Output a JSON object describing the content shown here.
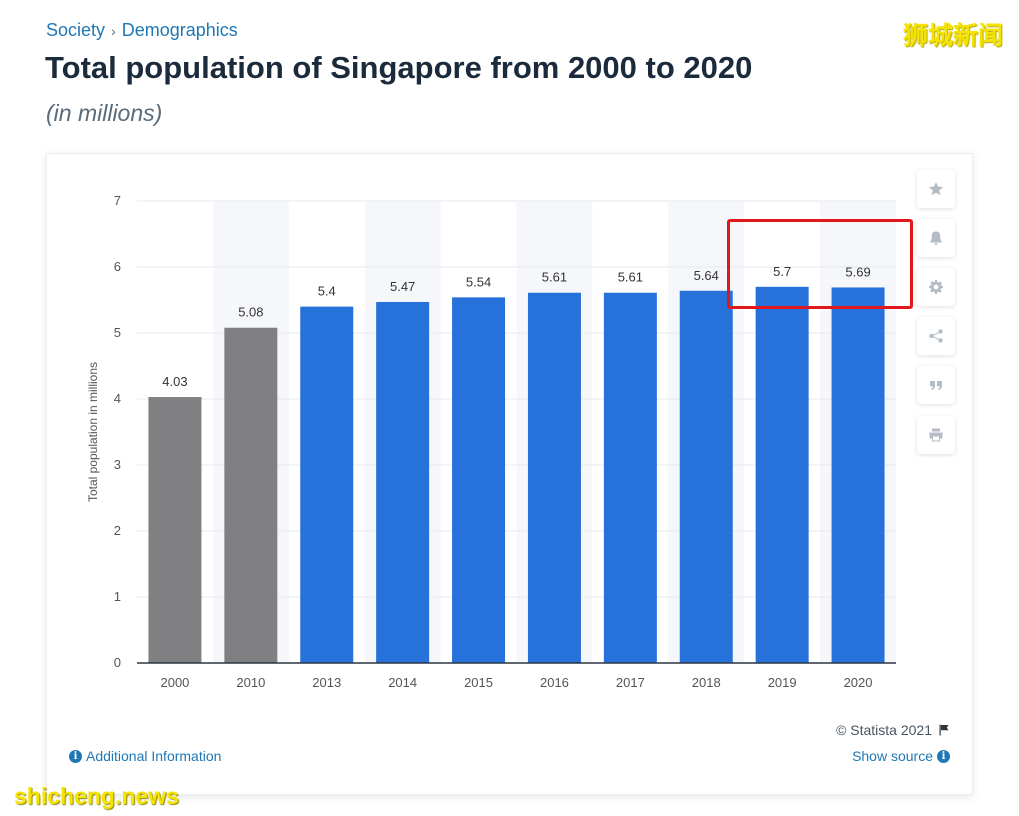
{
  "header": {
    "breadcrumb": [
      "Society",
      "Demographics"
    ],
    "breadcrumb_separator": "›",
    "title": "Total population of Singapore from 2000 to 2020",
    "subtitle": "(in millions)"
  },
  "watermarks": {
    "top": "狮城新闻",
    "bottom": "shicheng.news"
  },
  "sidebar": {
    "icons": [
      "star-icon",
      "bell-icon",
      "gear-icon",
      "share-icon",
      "quote-icon",
      "print-icon"
    ]
  },
  "footer": {
    "additional_info": "Additional Information",
    "copyright": "© Statista 2021",
    "show_source": "Show source"
  },
  "colors": {
    "bar_blue": "#2771db",
    "bar_gray": "#808083",
    "highlight": "#e3161c",
    "link": "#1f78b4"
  },
  "chart_data": {
    "type": "bar",
    "title": "Total population of Singapore from 2000 to 2020",
    "subtitle": "(in millions)",
    "ylabel": "Total population in millions",
    "xlabel": "",
    "categories": [
      "2000",
      "2010",
      "2013",
      "2014",
      "2015",
      "2016",
      "2017",
      "2018",
      "2019",
      "2020"
    ],
    "values": [
      4.03,
      5.08,
      5.4,
      5.47,
      5.54,
      5.61,
      5.61,
      5.64,
      5.7,
      5.69
    ],
    "value_labels": [
      "4.03",
      "5.08",
      "5.4",
      "5.47",
      "5.54",
      "5.61",
      "5.61",
      "5.64",
      "5.7",
      "5.69"
    ],
    "bar_colors": [
      "#808083",
      "#808083",
      "#2771db",
      "#2771db",
      "#2771db",
      "#2771db",
      "#2771db",
      "#2771db",
      "#2771db",
      "#2771db"
    ],
    "ylim": [
      0,
      7
    ],
    "yticks": [
      0,
      1,
      2,
      3,
      4,
      5,
      6,
      7
    ],
    "grid": true,
    "highlighted_categories": [
      "2019",
      "2020"
    ]
  }
}
